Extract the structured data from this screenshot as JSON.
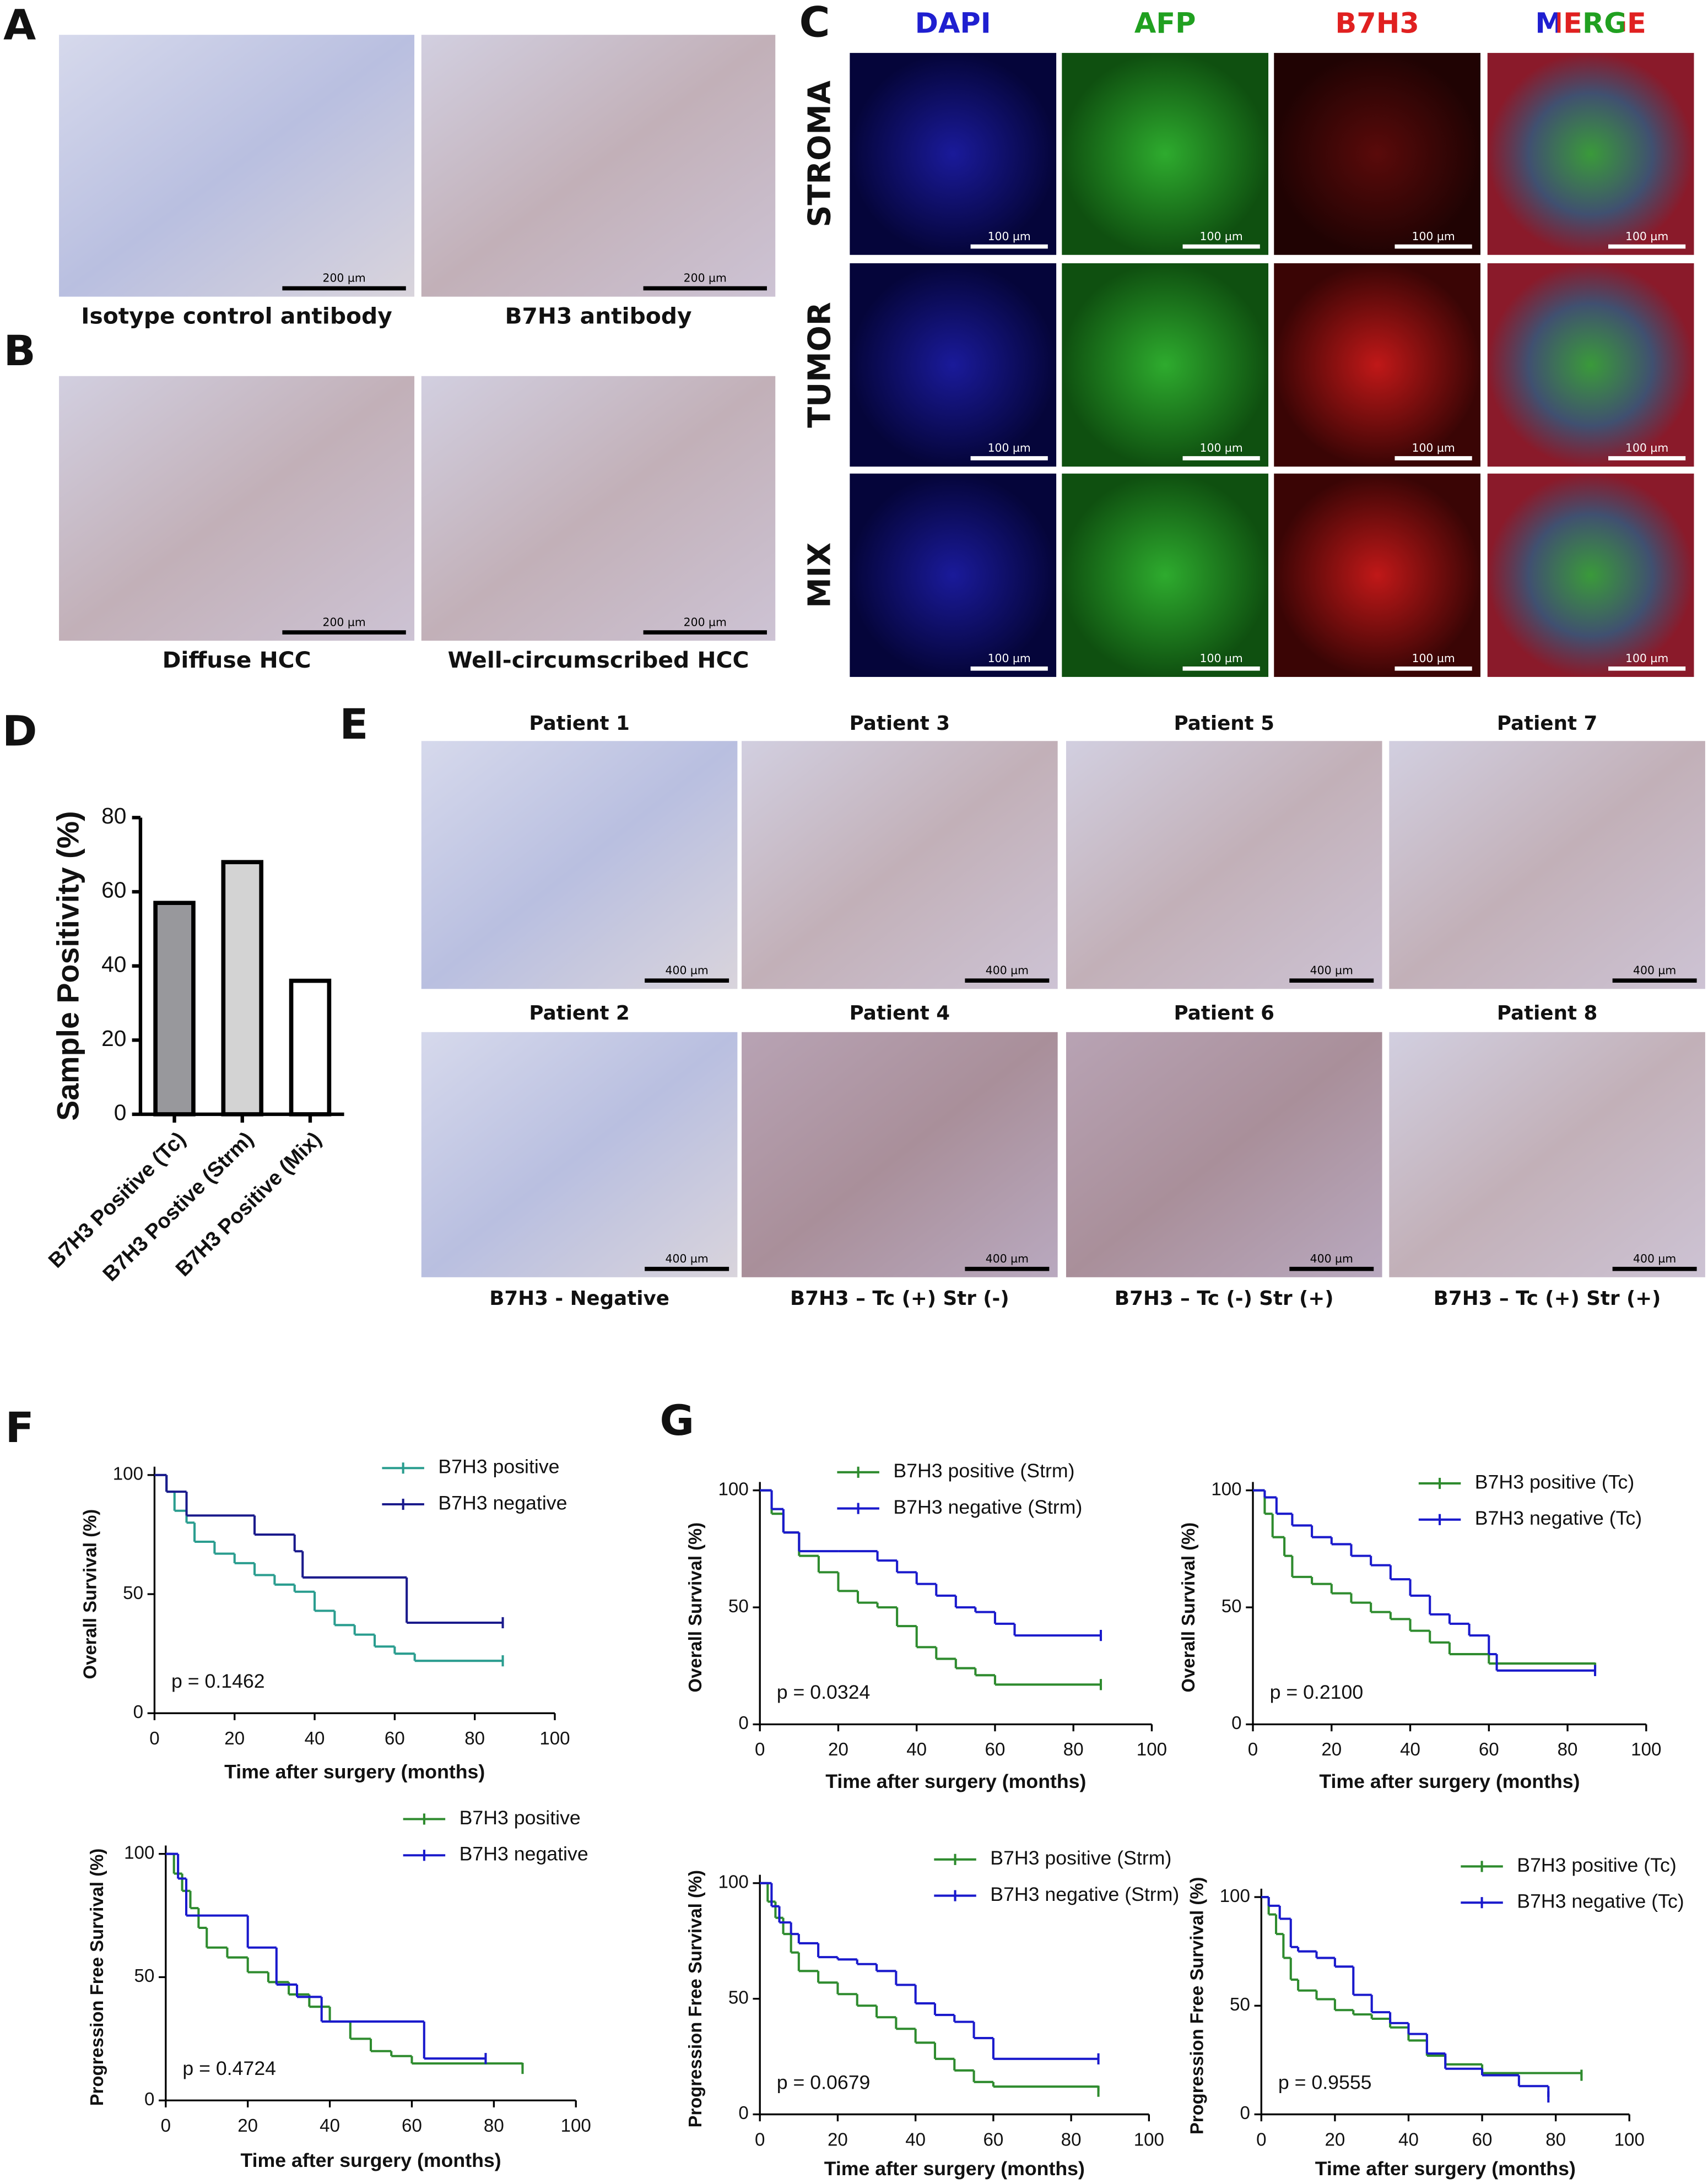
{
  "panel_labels": [
    "A",
    "B",
    "C",
    "D",
    "E",
    "F",
    "G"
  ],
  "panel_a": {
    "captions": [
      "Isotype control antibody",
      "B7H3 antibody"
    ],
    "scale_bar": "200 µm"
  },
  "panel_b": {
    "captions": [
      "Diffuse HCC",
      "Well-circumscribed HCC"
    ],
    "scale_bar": "200 µm"
  },
  "panel_c": {
    "channels": [
      "DAPI",
      "AFP",
      "B7H3",
      "MERGE"
    ],
    "rows": [
      "STROMA",
      "TUMOR",
      "MIX"
    ],
    "scale_bar": "100 µm"
  },
  "panel_e": {
    "patients": [
      "Patient 1",
      "Patient 3",
      "Patient 5",
      "Patient 7",
      "Patient 2",
      "Patient 4",
      "Patient 6",
      "Patient 8"
    ],
    "captions": [
      "B7H3 - Negative",
      "B7H3 – Tc (+) Str (-)",
      "B7H3 – Tc (-) Str (+)",
      "B7H3 – Tc (+) Str (+)"
    ],
    "scale_bar": "400 µm"
  },
  "chart_data": [
    {
      "type": "bar",
      "y_label": "Sample Positivity (%)",
      "categories": [
        "B7H3 Positive (Tc)",
        "B7H3 Postive (Strm)",
        "B7H3 Positive (Mix)"
      ],
      "values": [
        57,
        68,
        36
      ],
      "colors": [
        "#98989c",
        "#d3d3d3",
        "#ffffff"
      ],
      "ylim": [
        0,
        80
      ],
      "yticks": [
        0,
        20,
        40,
        60,
        80
      ]
    },
    {
      "type": "step",
      "x_label": "Time after surgery (months)",
      "y_label": "Overall Survival (%)",
      "xlim": [
        0,
        100
      ],
      "xticks": [
        0,
        20,
        40,
        60,
        80,
        100
      ],
      "ylim": [
        0,
        100
      ],
      "yticks": [
        0,
        50,
        100
      ],
      "annotation": "p = 0.1462",
      "legend": "upper right",
      "series": [
        {
          "name": "B7H3 positive",
          "color": "#2a9d8f",
          "x": [
            0,
            3,
            5,
            8,
            10,
            15,
            20,
            25,
            30,
            35,
            40,
            45,
            50,
            55,
            60,
            65,
            87
          ],
          "values": [
            100,
            93,
            85,
            80,
            72,
            67,
            63,
            58,
            54,
            51,
            43,
            37,
            33,
            28,
            25,
            22,
            22
          ]
        },
        {
          "name": "B7H3 negative",
          "color": "#1a1a8c",
          "x": [
            0,
            3,
            8,
            25,
            35,
            37,
            63,
            87
          ],
          "values": [
            100,
            93,
            83,
            75,
            68,
            57,
            38,
            38
          ]
        }
      ]
    },
    {
      "type": "step",
      "x_label": "Time after surgery (months)",
      "y_label": "Progression Free Survival (%)",
      "xlim": [
        0,
        100
      ],
      "xticks": [
        0,
        20,
        40,
        60,
        80,
        100
      ],
      "ylim": [
        0,
        100
      ],
      "yticks": [
        0,
        50,
        100
      ],
      "annotation": "p = 0.4724",
      "legend": "upper right",
      "series": [
        {
          "name": "B7H3 positive",
          "color": "#2e8b2e",
          "x": [
            0,
            2,
            4,
            6,
            8,
            10,
            15,
            20,
            25,
            30,
            35,
            40,
            45,
            50,
            55,
            60,
            87
          ],
          "values": [
            100,
            92,
            85,
            78,
            70,
            62,
            58,
            52,
            48,
            43,
            38,
            32,
            25,
            20,
            18,
            15,
            13
          ]
        },
        {
          "name": "B7H3 negative",
          "color": "#1a1acc",
          "x": [
            0,
            3,
            5,
            20,
            27,
            32,
            38,
            63,
            78
          ],
          "values": [
            100,
            90,
            75,
            62,
            47,
            42,
            32,
            17,
            17
          ]
        }
      ]
    },
    {
      "type": "step",
      "x_label": "Time after surgery (months)",
      "y_label": "Overall Survival (%)",
      "xlim": [
        0,
        100
      ],
      "xticks": [
        0,
        20,
        40,
        60,
        80,
        100
      ],
      "ylim": [
        0,
        100
      ],
      "yticks": [
        0,
        50,
        100
      ],
      "annotation": "p = 0.0324",
      "legend": "upper right",
      "series": [
        {
          "name": "B7H3 positive (Strm)",
          "color": "#2e8b2e",
          "x": [
            0,
            3,
            6,
            10,
            15,
            20,
            25,
            30,
            35,
            40,
            45,
            50,
            55,
            60,
            87
          ],
          "values": [
            100,
            90,
            82,
            72,
            65,
            57,
            52,
            50,
            42,
            33,
            28,
            24,
            21,
            17,
            17
          ]
        },
        {
          "name": "B7H3 negative (Strm)",
          "color": "#1a1acc",
          "x": [
            0,
            3,
            6,
            10,
            20,
            30,
            35,
            40,
            45,
            50,
            55,
            60,
            65,
            87
          ],
          "values": [
            100,
            92,
            82,
            74,
            74,
            70,
            65,
            60,
            55,
            50,
            48,
            43,
            38,
            38
          ]
        }
      ]
    },
    {
      "type": "step",
      "x_label": "Time after surgery (months)",
      "y_label": "Overall Survival (%)",
      "xlim": [
        0,
        100
      ],
      "xticks": [
        0,
        20,
        40,
        60,
        80,
        100
      ],
      "ylim": [
        0,
        100
      ],
      "yticks": [
        0,
        50,
        100
      ],
      "annotation": "p = 0.2100",
      "legend": "upper right",
      "series": [
        {
          "name": "B7H3 positive (Tc)",
          "color": "#2e8b2e",
          "x": [
            0,
            3,
            5,
            8,
            10,
            15,
            20,
            25,
            30,
            35,
            40,
            45,
            50,
            60,
            87
          ],
          "values": [
            100,
            90,
            80,
            72,
            63,
            60,
            56,
            52,
            48,
            45,
            40,
            35,
            30,
            26,
            24
          ]
        },
        {
          "name": "B7H3 negative (Tc)",
          "color": "#1a1acc",
          "x": [
            0,
            3,
            6,
            10,
            15,
            20,
            25,
            30,
            35,
            40,
            45,
            50,
            55,
            60,
            62,
            87
          ],
          "values": [
            100,
            97,
            90,
            85,
            80,
            77,
            72,
            68,
            62,
            55,
            47,
            43,
            38,
            30,
            23,
            23
          ]
        }
      ]
    },
    {
      "type": "step",
      "x_label": "Time after surgery (months)",
      "y_label": "Progression Free Survival (%)",
      "xlim": [
        0,
        100
      ],
      "xticks": [
        0,
        20,
        40,
        60,
        80,
        100
      ],
      "ylim": [
        0,
        100
      ],
      "yticks": [
        0,
        50,
        100
      ],
      "annotation": "p = 0.0679",
      "legend": "upper right",
      "series": [
        {
          "name": "B7H3 positive (Strm)",
          "color": "#2e8b2e",
          "x": [
            0,
            2,
            4,
            6,
            8,
            10,
            15,
            20,
            25,
            30,
            35,
            40,
            45,
            50,
            55,
            60,
            87
          ],
          "values": [
            100,
            92,
            85,
            78,
            70,
            62,
            57,
            52,
            47,
            42,
            37,
            31,
            24,
            19,
            14,
            12,
            10
          ]
        },
        {
          "name": "B7H3 negative (Strm)",
          "color": "#1a1acc",
          "x": [
            0,
            3,
            5,
            8,
            10,
            15,
            20,
            25,
            30,
            35,
            40,
            45,
            50,
            55,
            60,
            87
          ],
          "values": [
            100,
            90,
            83,
            78,
            74,
            68,
            67,
            65,
            62,
            56,
            48,
            43,
            40,
            33,
            24,
            24
          ]
        }
      ]
    },
    {
      "type": "step",
      "x_label": "Time after surgery (months)",
      "y_label": "Progression Free Survival (%)",
      "xlim": [
        0,
        100
      ],
      "xticks": [
        0,
        20,
        40,
        60,
        80,
        100
      ],
      "ylim": [
        0,
        100
      ],
      "yticks": [
        0,
        50,
        100
      ],
      "annotation": "p = 0.9555",
      "legend": "upper right",
      "series": [
        {
          "name": "B7H3 positive (Tc)",
          "color": "#2e8b2e",
          "x": [
            0,
            2,
            4,
            6,
            8,
            10,
            15,
            20,
            25,
            30,
            35,
            40,
            45,
            50,
            60,
            87
          ],
          "values": [
            100,
            92,
            83,
            72,
            62,
            57,
            53,
            48,
            46,
            44,
            40,
            34,
            27,
            23,
            19,
            18
          ]
        },
        {
          "name": "B7H3 negative (Tc)",
          "color": "#1a1acc",
          "x": [
            0,
            2,
            5,
            8,
            10,
            15,
            20,
            25,
            30,
            35,
            40,
            45,
            50,
            60,
            70,
            78
          ],
          "values": [
            100,
            96,
            90,
            77,
            75,
            72,
            68,
            55,
            47,
            42,
            37,
            28,
            21,
            18,
            13,
            8
          ]
        }
      ]
    }
  ]
}
